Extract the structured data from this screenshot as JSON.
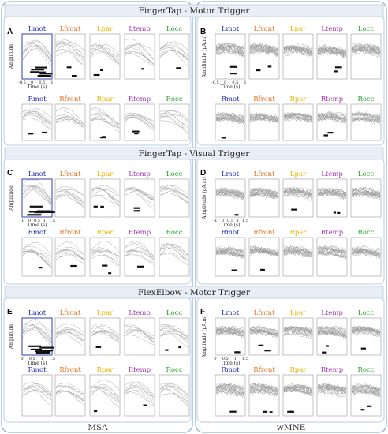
{
  "figure": {
    "sections": [
      {
        "title": "FingerTap - Motor Trigger",
        "left_letter": "A",
        "right_letter": "B"
      },
      {
        "title": "FingerTap - Visual Trigger",
        "left_letter": "C",
        "right_letter": "D"
      },
      {
        "title": "FlexElbow - Motor Trigger",
        "left_letter": "E",
        "right_letter": "F"
      }
    ],
    "methods": [
      "MSA",
      "wMNE"
    ],
    "regions_row1": [
      {
        "label": "Lmot",
        "color": "#1f2fb4"
      },
      {
        "label": "Lfront",
        "color": "#e57322"
      },
      {
        "label": "Lpar",
        "color": "#e8b400"
      },
      {
        "label": "Ltemp",
        "color": "#a83ab4"
      },
      {
        "label": "Locc",
        "color": "#2aa52a"
      }
    ],
    "regions_row2": [
      {
        "label": "Rmot",
        "color": "#1f2fb4"
      },
      {
        "label": "Rfront",
        "color": "#e57322"
      },
      {
        "label": "Rpar",
        "color": "#e8b400"
      },
      {
        "label": "Rtemp",
        "color": "#a83ab4"
      },
      {
        "label": "Rocc",
        "color": "#2aa52a"
      }
    ],
    "axis": {
      "ylabel_msa": "Amplitude",
      "ylabel_wmne": "Amplitude (pA.m)",
      "xlabel": "Time (s)",
      "ticks_a": [
        "-0.5",
        "0",
        "0.5",
        "1"
      ],
      "ticks_c": [
        "-1",
        "0",
        "0.5",
        "1",
        "1.5"
      ],
      "ticks_e": [
        "0",
        "0.5",
        "1",
        "1.5"
      ]
    }
  }
}
